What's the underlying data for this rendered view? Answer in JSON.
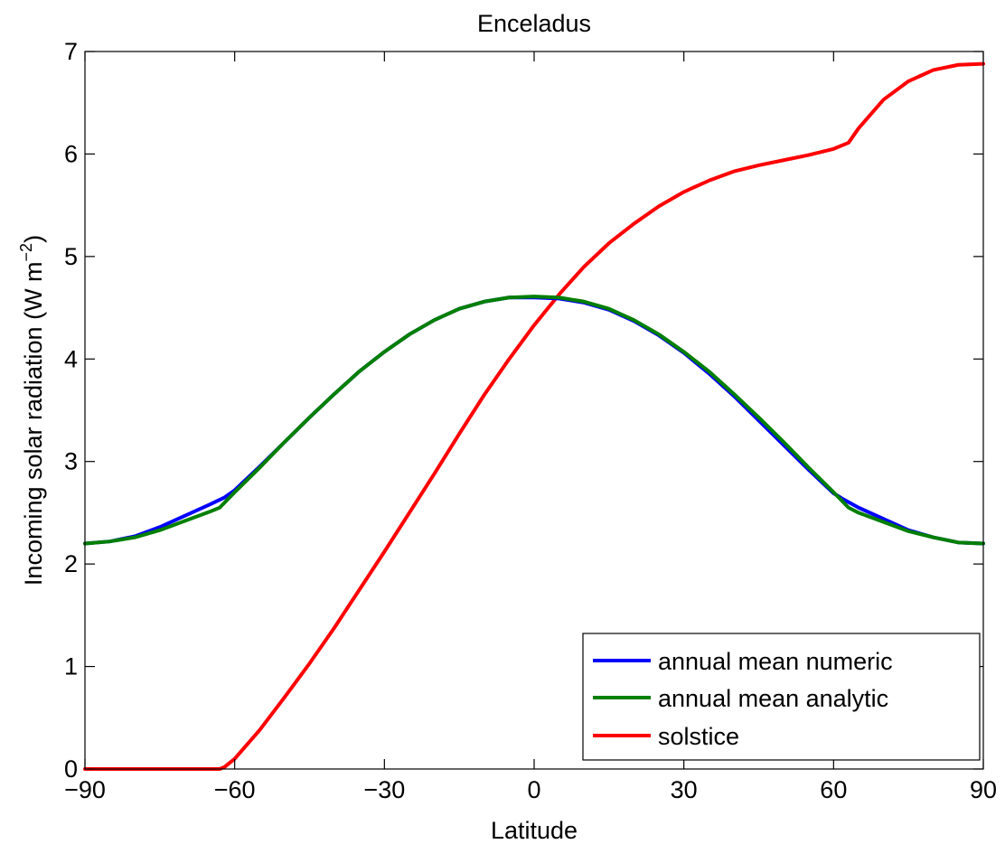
{
  "chart_data": {
    "type": "line",
    "title": "Enceladus",
    "xlabel": "Latitude",
    "ylabel": {
      "main": "Incoming solar radiation (W m",
      "superscript": "−2",
      "close": ")"
    },
    "xlim": [
      -90,
      90
    ],
    "ylim": [
      0,
      7
    ],
    "xticks": [
      -90,
      -60,
      -30,
      0,
      30,
      60,
      90
    ],
    "xtick_labels": [
      "−90",
      "−60",
      "−30",
      "0",
      "30",
      "60",
      "90"
    ],
    "yticks": [
      0,
      1,
      2,
      3,
      4,
      5,
      6,
      7
    ],
    "ytick_labels": [
      "0",
      "1",
      "2",
      "3",
      "4",
      "5",
      "6",
      "7"
    ],
    "grid": false,
    "legend_position": "bottom-right",
    "series": [
      {
        "name": "annual mean numeric",
        "color": "#0000ff",
        "x": [
          -90,
          -85,
          -80,
          -75,
          -70,
          -65,
          -62,
          -60,
          -55,
          -50,
          -45,
          -40,
          -35,
          -30,
          -25,
          -20,
          -15,
          -10,
          -5,
          0,
          5,
          10,
          15,
          20,
          25,
          30,
          35,
          40,
          45,
          50,
          55,
          60,
          62,
          65,
          70,
          75,
          80,
          85,
          90
        ],
        "y": [
          2.2,
          2.22,
          2.27,
          2.36,
          2.47,
          2.58,
          2.65,
          2.72,
          2.95,
          3.19,
          3.43,
          3.66,
          3.88,
          4.07,
          4.24,
          4.38,
          4.49,
          4.56,
          4.6,
          4.6,
          4.59,
          4.55,
          4.48,
          4.37,
          4.23,
          4.06,
          3.86,
          3.64,
          3.4,
          3.16,
          2.92,
          2.69,
          2.63,
          2.55,
          2.44,
          2.33,
          2.26,
          2.21,
          2.2
        ]
      },
      {
        "name": "annual mean analytic",
        "color": "#007f00",
        "x": [
          -90,
          -85,
          -80,
          -75,
          -70,
          -65,
          -63,
          -60,
          -55,
          -50,
          -45,
          -40,
          -35,
          -30,
          -25,
          -20,
          -15,
          -10,
          -5,
          0,
          5,
          10,
          15,
          20,
          25,
          30,
          35,
          40,
          45,
          50,
          55,
          60,
          63,
          65,
          70,
          75,
          80,
          85,
          90
        ],
        "y": [
          2.2,
          2.22,
          2.26,
          2.33,
          2.42,
          2.51,
          2.55,
          2.7,
          2.94,
          3.19,
          3.43,
          3.66,
          3.88,
          4.07,
          4.24,
          4.38,
          4.49,
          4.56,
          4.6,
          4.61,
          4.6,
          4.56,
          4.49,
          4.38,
          4.24,
          4.07,
          3.88,
          3.66,
          3.43,
          3.19,
          2.94,
          2.7,
          2.55,
          2.5,
          2.41,
          2.32,
          2.26,
          2.21,
          2.2
        ]
      },
      {
        "name": "solstice",
        "color": "#ff0000",
        "x": [
          -90,
          -80,
          -70,
          -63,
          -62,
          -60,
          -55,
          -50,
          -45,
          -40,
          -35,
          -30,
          -25,
          -20,
          -15,
          -10,
          -5,
          0,
          5,
          10,
          15,
          20,
          25,
          30,
          35,
          40,
          45,
          50,
          55,
          60,
          63,
          65,
          70,
          75,
          80,
          85,
          90
        ],
        "y": [
          0,
          0,
          0,
          0,
          0.02,
          0.1,
          0.38,
          0.7,
          1.03,
          1.38,
          1.75,
          2.12,
          2.5,
          2.88,
          3.27,
          3.65,
          4.0,
          4.33,
          4.63,
          4.9,
          5.13,
          5.32,
          5.49,
          5.63,
          5.74,
          5.83,
          5.89,
          5.94,
          5.99,
          6.05,
          6.11,
          6.25,
          6.53,
          6.71,
          6.82,
          6.87,
          6.88
        ]
      }
    ]
  }
}
